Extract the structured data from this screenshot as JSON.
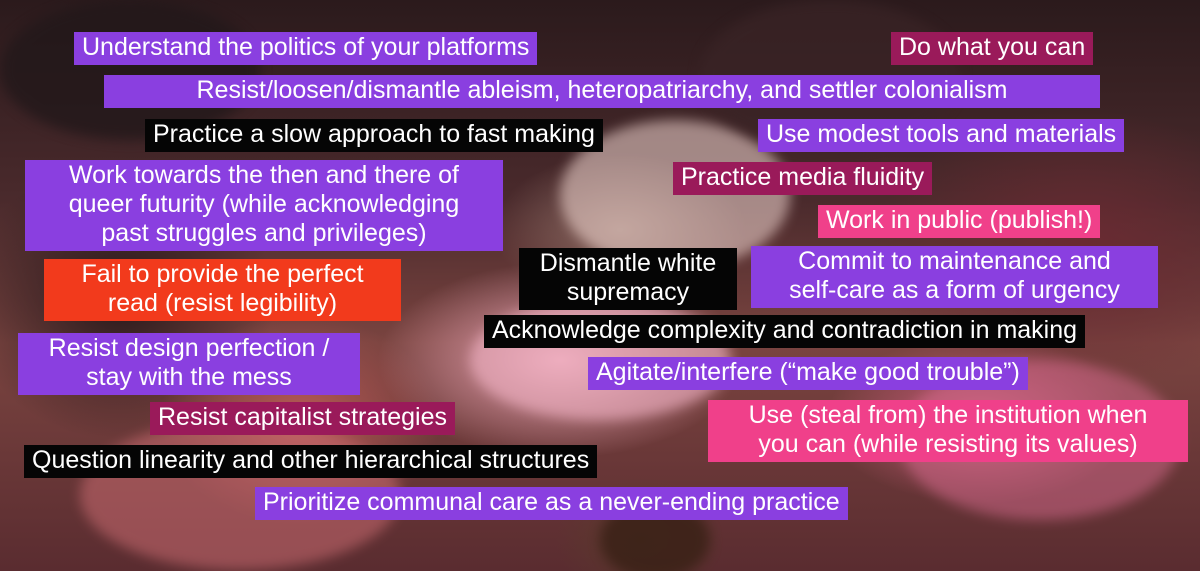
{
  "statements": [
    {
      "id": "s1",
      "text": "Understand the politics of your platforms",
      "color": "#8a3fe0"
    },
    {
      "id": "s2",
      "text": "Do what you can",
      "color": "#9a1a5a"
    },
    {
      "id": "s3",
      "text": "Resist/loosen/dismantle ableism, heteropatriarchy, and settler colonialism",
      "color": "#8a3fe0"
    },
    {
      "id": "s4",
      "text": "Practice a slow approach to fast making",
      "color": "#050505"
    },
    {
      "id": "s5",
      "text": "Use modest tools and materials",
      "color": "#8a3fe0"
    },
    {
      "id": "s6",
      "lines": [
        "Work towards the then and there of",
        "queer futurity (while acknowledging",
        "past struggles and privileges)"
      ],
      "color": "#8a3fe0"
    },
    {
      "id": "s7",
      "text": "Practice media fluidity",
      "color": "#9a1a5a"
    },
    {
      "id": "s8",
      "text": "Work in public (publish!)",
      "color": "#f0408a"
    },
    {
      "id": "s9",
      "lines": [
        "Fail to provide the perfect",
        "read (resist legibility)"
      ],
      "color": "#f23a1c"
    },
    {
      "id": "s10",
      "lines": [
        "Dismantle white",
        "supremacy"
      ],
      "color": "#050505"
    },
    {
      "id": "s11",
      "lines": [
        "Commit to maintenance and",
        "self-care as a form of urgency"
      ],
      "color": "#8a3fe0"
    },
    {
      "id": "s12",
      "text": "Acknowledge complexity and contradiction in making",
      "color": "#050505"
    },
    {
      "id": "s13",
      "lines": [
        "Resist design perfection /",
        "stay with the mess"
      ],
      "color": "#8a3fe0"
    },
    {
      "id": "s14",
      "text": "Agitate/interfere (“make good trouble”)",
      "color": "#8a3fe0"
    },
    {
      "id": "s15",
      "text": "Resist capitalist strategies",
      "color": "#9a1a5a"
    },
    {
      "id": "s16",
      "lines": [
        "Use (steal from) the institution when",
        "you can (while resisting its values)"
      ],
      "color": "#f0408a"
    },
    {
      "id": "s17",
      "text": "Question linearity and other hierarchical structures",
      "color": "#050505"
    },
    {
      "id": "s18",
      "text": "Prioritize communal care as a never-ending practice",
      "color": "#8a3fe0"
    }
  ]
}
